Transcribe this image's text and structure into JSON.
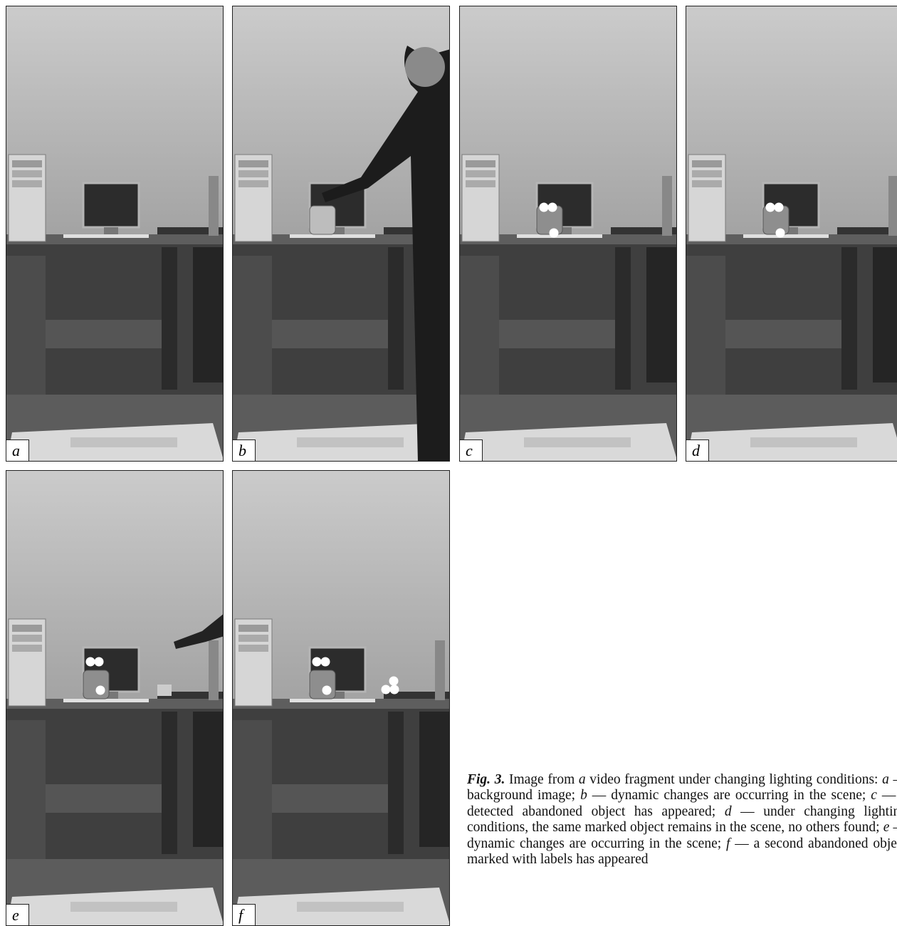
{
  "panels": [
    {
      "label": "a"
    },
    {
      "label": "b"
    },
    {
      "label": "c"
    },
    {
      "label": "d"
    },
    {
      "label": "e"
    },
    {
      "label": "f"
    }
  ],
  "caption": {
    "label": "Fig. 3.",
    "parts": [
      "Image from ",
      "a",
      " video fragment under changing lighting conditions: ",
      "a",
      " — background image; ",
      "b",
      " — dynamic changes are occurring in the scene; ",
      "c",
      " — a detected abandoned object has appeared; ",
      "d",
      " — under changing lighting conditions, the same marked object remains in the scene, no others found; ",
      "e",
      " — dynamic changes are occurring in the scene; ",
      "f",
      " — a second abandoned object marked with labels has appeared"
    ]
  }
}
